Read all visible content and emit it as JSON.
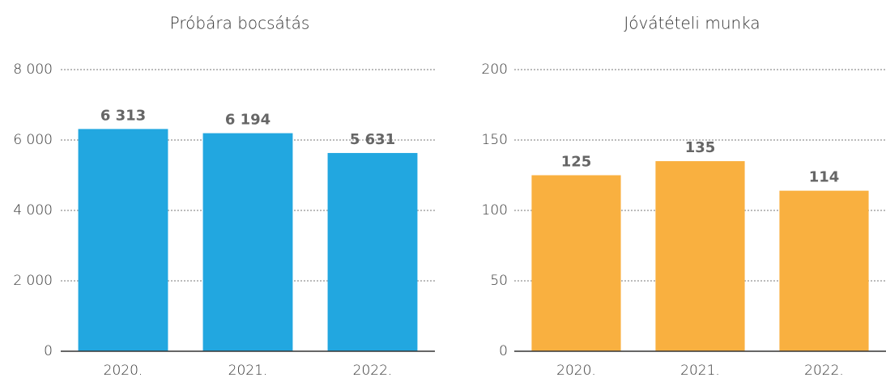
{
  "chart_data": [
    {
      "type": "bar",
      "title": "Próbára bocsátás",
      "categories": [
        "2020.",
        "2021.",
        "2022."
      ],
      "values": [
        6313,
        6194,
        5631
      ],
      "value_labels": [
        "6 313",
        "6 194",
        "5 631"
      ],
      "color": "#22a7e0",
      "ylim": [
        0,
        8000
      ],
      "yticks": [
        0,
        {
          "value": 2000,
          "label": "2 000"
        },
        {
          "value": 4000,
          "label": "4 000"
        },
        {
          "value": 6000,
          "label": "6 000"
        },
        {
          "value": 8000,
          "label": "8 000"
        }
      ],
      "grid": true
    },
    {
      "type": "bar",
      "title": "Jóvátételi munka",
      "categories": [
        "2020.",
        "2021.",
        "2022."
      ],
      "values": [
        125,
        135,
        114
      ],
      "color": "#f9b040",
      "ylim": [
        0,
        200
      ],
      "yticks": [
        0,
        50,
        100,
        150,
        200
      ],
      "grid": true
    }
  ]
}
